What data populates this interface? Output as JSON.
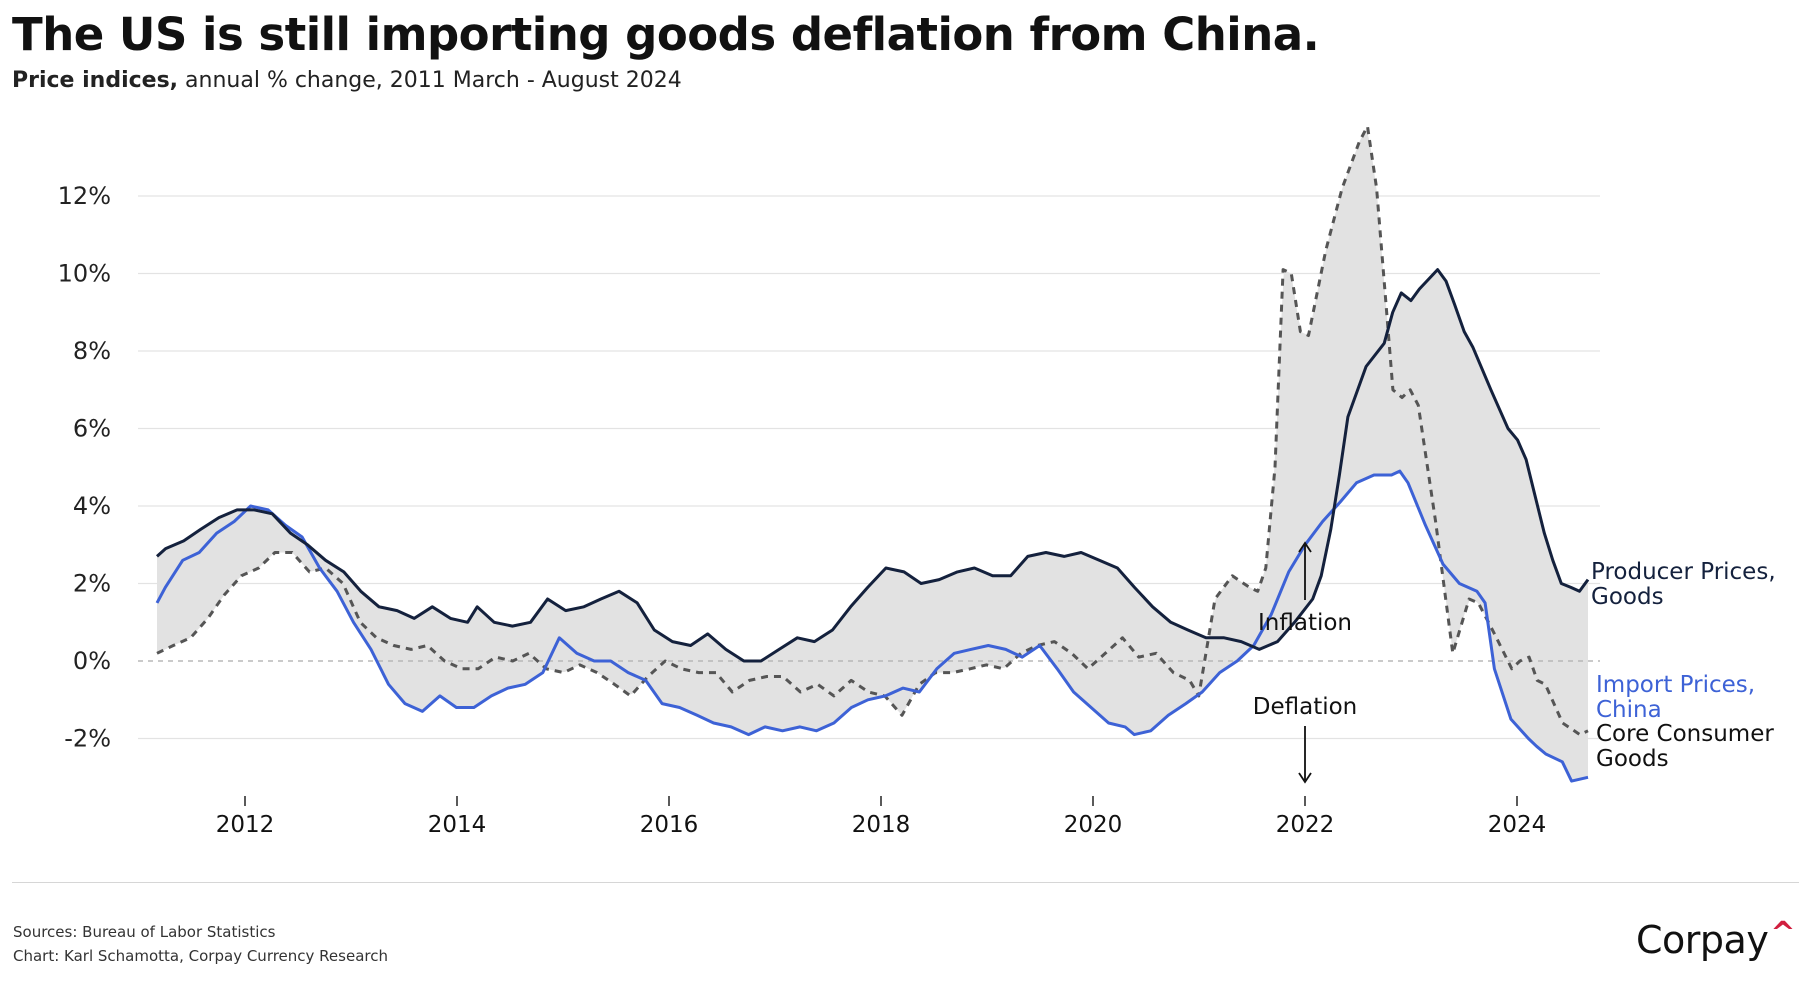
{
  "header": {
    "title": "The US is still importing goods deflation from China.",
    "subtitle_bold": "Price indices,",
    "subtitle_rest": " annual % change, 2011 March - August 2024"
  },
  "footer": {
    "sources": "Sources: Bureau of Labor Statistics",
    "credit": "Chart: Karl Schamotta, Corpay Currency Research",
    "brand": "Corpay",
    "brand_mark": "^"
  },
  "colors": {
    "producer": "#14213d",
    "import_china": "#3d62d6",
    "core_consumer": "#555555",
    "band": "#e2e2e2",
    "brand_accent": "#d11f3f"
  },
  "chart_data": {
    "type": "line",
    "title": "The US is still importing goods deflation from China.",
    "subtitle": "Price indices, annual % change, 2011 March - August 2024",
    "xlabel": "",
    "ylabel": "",
    "xlim": [
      2011.17,
      2024.67
    ],
    "ylim": [
      -3.4,
      14.0
    ],
    "x_ticks": [
      2012,
      2014,
      2016,
      2018,
      2020,
      2022,
      2024
    ],
    "x_tick_labels": [
      "2012",
      "2014",
      "2016",
      "2018",
      "2020",
      "2022",
      "2024"
    ],
    "y_ticks": [
      -2,
      0,
      2,
      4,
      6,
      8,
      10,
      12
    ],
    "y_tick_labels": [
      "-2%",
      "0%",
      "2%",
      "4%",
      "6%",
      "8%",
      "10%",
      "12%"
    ],
    "grid": true,
    "zero_line": "dashed",
    "shaded_band": "between max and min of series",
    "annotations": [
      {
        "text": "Inflation",
        "x": 2022.0,
        "arrow": "up"
      },
      {
        "text": "Deflation",
        "x": 2022.0,
        "arrow": "down"
      }
    ],
    "legend": "direct labels at right end of lines",
    "series": [
      {
        "name": "Producer Prices, Goods",
        "label_lines": [
          "Producer Prices,",
          "Goods"
        ],
        "style": "solid",
        "points": [
          [
            2011.17,
            2.7
          ],
          [
            2011.25,
            2.9
          ],
          [
            2011.42,
            3.1
          ],
          [
            2011.58,
            3.4
          ],
          [
            2011.75,
            3.7
          ],
          [
            2011.92,
            3.9
          ],
          [
            2012.08,
            3.9
          ],
          [
            2012.25,
            3.8
          ],
          [
            2012.42,
            3.3
          ],
          [
            2012.58,
            3.0
          ],
          [
            2012.75,
            2.6
          ],
          [
            2012.92,
            2.3
          ],
          [
            2013.08,
            1.8
          ],
          [
            2013.25,
            1.4
          ],
          [
            2013.42,
            1.3
          ],
          [
            2013.58,
            1.1
          ],
          [
            2013.75,
            1.4
          ],
          [
            2013.92,
            1.1
          ],
          [
            2014.08,
            1.0
          ],
          [
            2014.17,
            1.4
          ],
          [
            2014.33,
            1.0
          ],
          [
            2014.5,
            0.9
          ],
          [
            2014.67,
            1.0
          ],
          [
            2014.83,
            1.6
          ],
          [
            2015.0,
            1.3
          ],
          [
            2015.17,
            1.4
          ],
          [
            2015.33,
            1.6
          ],
          [
            2015.5,
            1.8
          ],
          [
            2015.67,
            1.5
          ],
          [
            2015.83,
            0.8
          ],
          [
            2016.0,
            0.5
          ],
          [
            2016.17,
            0.4
          ],
          [
            2016.33,
            0.7
          ],
          [
            2016.5,
            0.3
          ],
          [
            2016.67,
            0.0
          ],
          [
            2016.83,
            0.0
          ],
          [
            2017.0,
            0.3
          ],
          [
            2017.17,
            0.6
          ],
          [
            2017.33,
            0.5
          ],
          [
            2017.5,
            0.8
          ],
          [
            2017.67,
            1.4
          ],
          [
            2017.83,
            1.9
          ],
          [
            2018.0,
            2.4
          ],
          [
            2018.17,
            2.3
          ],
          [
            2018.33,
            2.0
          ],
          [
            2018.5,
            2.1
          ],
          [
            2018.67,
            2.3
          ],
          [
            2018.83,
            2.4
          ],
          [
            2019.0,
            2.2
          ],
          [
            2019.17,
            2.2
          ],
          [
            2019.33,
            2.7
          ],
          [
            2019.5,
            2.8
          ],
          [
            2019.67,
            2.7
          ],
          [
            2019.83,
            2.8
          ],
          [
            2020.0,
            2.6
          ],
          [
            2020.17,
            2.4
          ],
          [
            2020.33,
            1.9
          ],
          [
            2020.5,
            1.4
          ],
          [
            2020.67,
            1.0
          ],
          [
            2020.83,
            0.8
          ],
          [
            2021.0,
            0.6
          ],
          [
            2021.17,
            0.6
          ],
          [
            2021.33,
            0.5
          ],
          [
            2021.5,
            0.3
          ],
          [
            2021.67,
            0.5
          ],
          [
            2021.83,
            1.0
          ],
          [
            2022.0,
            1.6
          ],
          [
            2022.08,
            2.2
          ],
          [
            2022.17,
            3.4
          ],
          [
            2022.25,
            4.8
          ],
          [
            2022.33,
            6.3
          ],
          [
            2022.5,
            7.6
          ],
          [
            2022.67,
            8.2
          ],
          [
            2022.75,
            9.0
          ],
          [
            2022.83,
            9.5
          ],
          [
            2022.92,
            9.3
          ],
          [
            2023.0,
            9.6
          ],
          [
            2023.17,
            10.1
          ],
          [
            2023.25,
            9.8
          ],
          [
            2023.33,
            9.2
          ],
          [
            2023.42,
            8.5
          ],
          [
            2023.5,
            8.1
          ],
          [
            2023.67,
            7.0
          ],
          [
            2023.83,
            6.0
          ],
          [
            2023.92,
            5.7
          ],
          [
            2024.0,
            5.2
          ],
          [
            2024.08,
            4.3
          ],
          [
            2024.17,
            3.3
          ],
          [
            2024.25,
            2.6
          ],
          [
            2024.33,
            2.0
          ],
          [
            2024.42,
            1.9
          ],
          [
            2024.5,
            1.8
          ],
          [
            2024.58,
            2.1
          ]
        ]
      },
      {
        "name": "Import Prices, China",
        "label_lines": [
          "Import Prices,",
          "China"
        ],
        "style": "solid",
        "points": [
          [
            2011.17,
            1.5
          ],
          [
            2011.25,
            1.9
          ],
          [
            2011.42,
            2.6
          ],
          [
            2011.58,
            2.8
          ],
          [
            2011.75,
            3.3
          ],
          [
            2011.92,
            3.6
          ],
          [
            2012.08,
            4.0
          ],
          [
            2012.25,
            3.9
          ],
          [
            2012.42,
            3.5
          ],
          [
            2012.58,
            3.2
          ],
          [
            2012.75,
            2.4
          ],
          [
            2012.92,
            1.8
          ],
          [
            2013.08,
            1.0
          ],
          [
            2013.25,
            0.3
          ],
          [
            2013.42,
            -0.6
          ],
          [
            2013.58,
            -1.1
          ],
          [
            2013.75,
            -1.3
          ],
          [
            2013.92,
            -0.9
          ],
          [
            2014.08,
            -1.2
          ],
          [
            2014.25,
            -1.2
          ],
          [
            2014.42,
            -0.9
          ],
          [
            2014.58,
            -0.7
          ],
          [
            2014.75,
            -0.6
          ],
          [
            2014.92,
            -0.3
          ],
          [
            2015.08,
            0.6
          ],
          [
            2015.25,
            0.2
          ],
          [
            2015.42,
            0.0
          ],
          [
            2015.58,
            0.0
          ],
          [
            2015.75,
            -0.3
          ],
          [
            2015.92,
            -0.5
          ],
          [
            2016.08,
            -1.1
          ],
          [
            2016.25,
            -1.2
          ],
          [
            2016.42,
            -1.4
          ],
          [
            2016.58,
            -1.6
          ],
          [
            2016.75,
            -1.7
          ],
          [
            2016.92,
            -1.9
          ],
          [
            2017.08,
            -1.7
          ],
          [
            2017.25,
            -1.8
          ],
          [
            2017.42,
            -1.7
          ],
          [
            2017.58,
            -1.8
          ],
          [
            2017.75,
            -1.6
          ],
          [
            2017.92,
            -1.2
          ],
          [
            2018.08,
            -1.0
          ],
          [
            2018.25,
            -0.9
          ],
          [
            2018.42,
            -0.7
          ],
          [
            2018.58,
            -0.8
          ],
          [
            2018.75,
            -0.2
          ],
          [
            2018.92,
            0.2
          ],
          [
            2019.08,
            0.3
          ],
          [
            2019.25,
            0.4
          ],
          [
            2019.42,
            0.3
          ],
          [
            2019.58,
            0.1
          ],
          [
            2019.75,
            0.4
          ],
          [
            2019.92,
            -0.2
          ],
          [
            2020.08,
            -0.8
          ],
          [
            2020.25,
            -1.2
          ],
          [
            2020.42,
            -1.6
          ],
          [
            2020.58,
            -1.7
          ],
          [
            2020.67,
            -1.9
          ],
          [
            2020.83,
            -1.8
          ],
          [
            2021.0,
            -1.4
          ],
          [
            2021.17,
            -1.1
          ],
          [
            2021.33,
            -0.8
          ],
          [
            2021.5,
            -0.3
          ],
          [
            2021.67,
            0.0
          ],
          [
            2021.83,
            0.4
          ],
          [
            2022.0,
            1.2
          ],
          [
            2022.17,
            2.3
          ],
          [
            2022.33,
            3.0
          ],
          [
            2022.5,
            3.6
          ],
          [
            2022.67,
            4.1
          ],
          [
            2022.83,
            4.6
          ],
          [
            2023.0,
            4.8
          ],
          [
            2023.17,
            4.8
          ],
          [
            2023.25,
            4.9
          ],
          [
            2023.33,
            4.6
          ],
          [
            2023.5,
            3.5
          ],
          [
            2023.67,
            2.5
          ],
          [
            2023.83,
            2.0
          ],
          [
            2024.0,
            1.8
          ],
          [
            2024.08,
            1.5
          ],
          [
            2024.17,
            -0.2
          ],
          [
            2024.33,
            -1.5
          ],
          [
            2024.5,
            -2.0
          ],
          [
            2024.58,
            -2.2
          ],
          [
            2024.67,
            -2.4
          ],
          [
            2024.83,
            -2.6
          ],
          [
            2024.92,
            -3.1
          ],
          [
            2025.08,
            -3.0
          ]
        ]
      },
      {
        "name": "Core Consumer Goods",
        "label_lines": [
          "Core Consumer",
          "Goods"
        ],
        "style": "dashed",
        "points": [
          [
            2011.17,
            0.2
          ],
          [
            2011.33,
            0.4
          ],
          [
            2011.5,
            0.6
          ],
          [
            2011.67,
            1.1
          ],
          [
            2011.83,
            1.7
          ],
          [
            2012.0,
            2.2
          ],
          [
            2012.17,
            2.4
          ],
          [
            2012.33,
            2.8
          ],
          [
            2012.5,
            2.8
          ],
          [
            2012.67,
            2.3
          ],
          [
            2012.83,
            2.4
          ],
          [
            2013.0,
            2.0
          ],
          [
            2013.17,
            1.0
          ],
          [
            2013.33,
            0.6
          ],
          [
            2013.5,
            0.4
          ],
          [
            2013.67,
            0.3
          ],
          [
            2013.83,
            0.4
          ],
          [
            2014.0,
            0.0
          ],
          [
            2014.17,
            -0.2
          ],
          [
            2014.33,
            -0.2
          ],
          [
            2014.5,
            0.1
          ],
          [
            2014.67,
            0.0
          ],
          [
            2014.83,
            0.2
          ],
          [
            2015.0,
            -0.2
          ],
          [
            2015.17,
            -0.3
          ],
          [
            2015.33,
            -0.1
          ],
          [
            2015.5,
            -0.3
          ],
          [
            2015.67,
            -0.6
          ],
          [
            2015.83,
            -0.9
          ],
          [
            2016.0,
            -0.4
          ],
          [
            2016.17,
            0.0
          ],
          [
            2016.33,
            -0.2
          ],
          [
            2016.5,
            -0.3
          ],
          [
            2016.67,
            -0.3
          ],
          [
            2016.83,
            -0.8
          ],
          [
            2017.0,
            -0.5
          ],
          [
            2017.17,
            -0.4
          ],
          [
            2017.33,
            -0.4
          ],
          [
            2017.5,
            -0.8
          ],
          [
            2017.67,
            -0.6
          ],
          [
            2017.83,
            -0.9
          ],
          [
            2018.0,
            -0.5
          ],
          [
            2018.17,
            -0.8
          ],
          [
            2018.33,
            -0.9
          ],
          [
            2018.5,
            -1.4
          ],
          [
            2018.67,
            -0.6
          ],
          [
            2018.83,
            -0.3
          ],
          [
            2019.0,
            -0.3
          ],
          [
            2019.17,
            -0.2
          ],
          [
            2019.33,
            -0.1
          ],
          [
            2019.5,
            -0.2
          ],
          [
            2019.67,
            0.2
          ],
          [
            2019.83,
            0.4
          ],
          [
            2020.0,
            0.5
          ],
          [
            2020.17,
            0.2
          ],
          [
            2020.33,
            -0.2
          ],
          [
            2020.5,
            0.2
          ],
          [
            2020.67,
            0.6
          ],
          [
            2020.83,
            0.1
          ],
          [
            2021.0,
            0.2
          ],
          [
            2021.17,
            -0.3
          ],
          [
            2021.33,
            -0.5
          ],
          [
            2021.42,
            -0.9
          ],
          [
            2021.58,
            1.6
          ],
          [
            2021.75,
            2.2
          ],
          [
            2021.92,
            1.9
          ],
          [
            2022.0,
            1.8
          ],
          [
            2022.08,
            2.4
          ],
          [
            2022.17,
            5.0
          ],
          [
            2022.25,
            10.1
          ],
          [
            2022.33,
            10.0
          ],
          [
            2022.42,
            8.5
          ],
          [
            2022.5,
            8.4
          ],
          [
            2022.67,
            10.6
          ],
          [
            2022.83,
            12.2
          ],
          [
            2023.0,
            13.4
          ],
          [
            2023.08,
            13.8
          ],
          [
            2023.17,
            12.2
          ],
          [
            2023.25,
            9.6
          ],
          [
            2023.33,
            7.0
          ],
          [
            2023.42,
            6.8
          ],
          [
            2023.5,
            7.0
          ],
          [
            2023.58,
            6.6
          ],
          [
            2023.75,
            3.6
          ],
          [
            2023.92,
            0.2
          ],
          [
            2024.08,
            1.6
          ],
          [
            2024.17,
            1.5
          ],
          [
            2024.33,
            0.7
          ],
          [
            2024.5,
            -0.2
          ],
          [
            2024.58,
            0.0
          ],
          [
            2024.67,
            0.1
          ],
          [
            2024.75,
            -0.5
          ],
          [
            2024.83,
            -0.6
          ],
          [
            2025.0,
            -1.6
          ],
          [
            2025.17,
            -1.9
          ],
          [
            2025.25,
            -1.8
          ]
        ]
      }
    ]
  }
}
